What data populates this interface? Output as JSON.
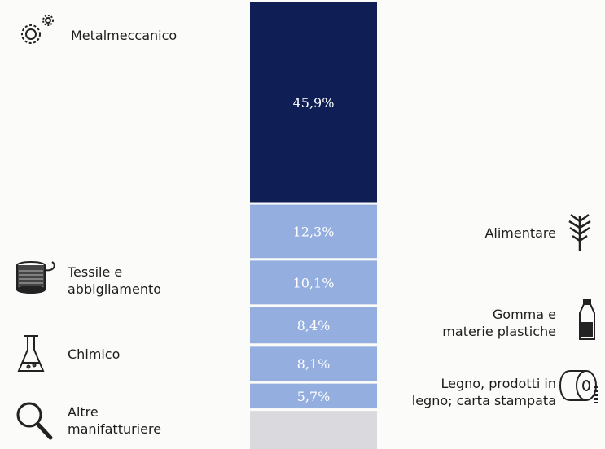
{
  "chart_data": {
    "type": "bar",
    "stacked": true,
    "title": "",
    "categories": [
      "Metalmeccanico",
      "Alimentare",
      "Tessile e abbigliamento",
      "Gomma e materie plastiche",
      "Chimico",
      "Legno, prodotti in legno; carta stampata",
      "Altre manifatturiere"
    ],
    "series": [
      {
        "category": "Metalmeccanico",
        "value": 45.9,
        "label": "45,9%",
        "color": "#0f1f55"
      },
      {
        "category": "Alimentare",
        "value": 12.3,
        "label": "12,3%",
        "color": "#93aedf"
      },
      {
        "category": "Tessile e abbigliamento",
        "value": 10.1,
        "label": "10,1%",
        "color": "#93aedf"
      },
      {
        "category": "Gomma e materie plastiche",
        "value": 8.4,
        "label": "8,4%",
        "color": "#93aedf"
      },
      {
        "category": "Chimico",
        "value": 8.1,
        "label": "8,1%",
        "color": "#93aedf"
      },
      {
        "category": "Legno, prodotti in legno; carta stampata",
        "value": 5.7,
        "label": "5,7%",
        "color": "#93aedf"
      },
      {
        "category": "Altre manifatturiere",
        "value": null,
        "label": "",
        "color": "#d9d9de"
      }
    ]
  },
  "labels": {
    "metalmeccanico": [
      "Metalmeccanico"
    ],
    "alimentare": [
      "Alimentare"
    ],
    "tessile": [
      "Tessile e",
      "abbigliamento"
    ],
    "gomma": [
      "Gomma e",
      "materie plastiche"
    ],
    "chimico": [
      "Chimico"
    ],
    "legno": [
      "Legno, prodotti in",
      "legno; carta stampata"
    ],
    "altre": [
      "Altre",
      "manifatturiere"
    ]
  },
  "icons": {
    "metalmeccanico": "gears-icon",
    "tessile": "thread-spool-icon",
    "chimico": "flask-icon",
    "altre": "magnifier-icon",
    "alimentare": "wheat-icon",
    "gomma": "bottle-icon",
    "legno": "paper-roll-icon"
  }
}
